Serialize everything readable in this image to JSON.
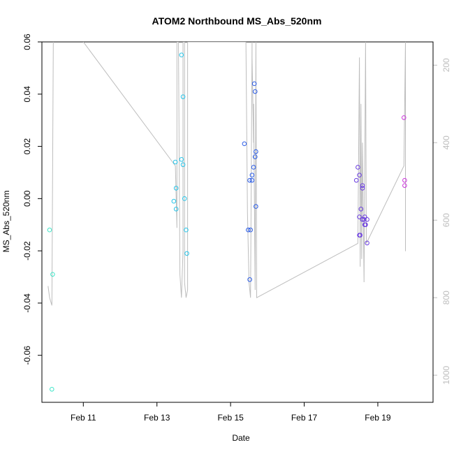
{
  "chart_data": {
    "type": "scatter",
    "title": "ATOM2 Northbound MS_Abs_520nm",
    "xlabel": "Date",
    "ylabel": "MS_Abs_520nm",
    "xlim": [
      "2023-02-09T21:00",
      "2023-02-20T12:00"
    ],
    "ylim": [
      -0.078,
      0.06
    ],
    "y2lim": [
      1070,
      140
    ],
    "grid": false,
    "legend": "none",
    "x_ticks": [
      {
        "x": "2023-02-11T00:00",
        "label": "Feb 11"
      },
      {
        "x": "2023-02-13T00:00",
        "label": "Feb 13"
      },
      {
        "x": "2023-02-15T00:00",
        "label": "Feb 15"
      },
      {
        "x": "2023-02-17T00:00",
        "label": "Feb 17"
      },
      {
        "x": "2023-02-19T00:00",
        "label": "Feb 19"
      }
    ],
    "y_ticks": [
      {
        "y": 0.06,
        "label": "0.06"
      },
      {
        "y": 0.04,
        "label": "0.04"
      },
      {
        "y": 0.02,
        "label": "0.02"
      },
      {
        "y": 0.0,
        "label": "0.00"
      },
      {
        "y": -0.02,
        "label": "-0.02"
      },
      {
        "y": -0.04,
        "label": "-0.04"
      },
      {
        "y": -0.06,
        "label": "-0.06"
      }
    ],
    "y2_ticks": [
      {
        "y": 200,
        "label": "200"
      },
      {
        "y": 400,
        "label": "400"
      },
      {
        "y": 600,
        "label": "600"
      },
      {
        "y": 800,
        "label": "800"
      },
      {
        "y": 1000,
        "label": "1000"
      }
    ],
    "colors": {
      "line": "#bdbdbd",
      "axis": "#000000",
      "right_axis": "#bdbdbd"
    },
    "points": [
      {
        "x": "2023-02-10T02:00",
        "y": -0.012,
        "color": "#3ee6c8"
      },
      {
        "x": "2023-02-10T04:00",
        "y": -0.029,
        "color": "#3ee6c8"
      },
      {
        "x": "2023-02-10T03:30",
        "y": -0.073,
        "color": "#3ee6c8"
      },
      {
        "x": "2023-02-13T11:00",
        "y": -0.001,
        "color": "#26c4e8"
      },
      {
        "x": "2023-02-13T12:00",
        "y": 0.014,
        "color": "#26c4e8"
      },
      {
        "x": "2023-02-13T12:30",
        "y": 0.004,
        "color": "#26c4e8"
      },
      {
        "x": "2023-02-13T12:30",
        "y": -0.004,
        "color": "#26c4e8"
      },
      {
        "x": "2023-02-13T16:00",
        "y": 0.055,
        "color": "#26c4e8"
      },
      {
        "x": "2023-02-13T16:00",
        "y": 0.015,
        "color": "#26c4e8"
      },
      {
        "x": "2023-02-13T17:00",
        "y": 0.039,
        "color": "#26c4e8"
      },
      {
        "x": "2023-02-13T17:00",
        "y": 0.013,
        "color": "#26c4e8"
      },
      {
        "x": "2023-02-13T18:00",
        "y": 0.0,
        "color": "#26c4e8"
      },
      {
        "x": "2023-02-13T19:00",
        "y": -0.012,
        "color": "#26c4e8"
      },
      {
        "x": "2023-02-13T19:30",
        "y": -0.021,
        "color": "#26c4e8"
      },
      {
        "x": "2023-02-15T09:00",
        "y": 0.021,
        "color": "#2a5ce8"
      },
      {
        "x": "2023-02-15T11:30",
        "y": -0.012,
        "color": "#2a5ce8"
      },
      {
        "x": "2023-02-15T12:30",
        "y": 0.007,
        "color": "#2a5ce8"
      },
      {
        "x": "2023-02-15T13:00",
        "y": -0.012,
        "color": "#2a5ce8"
      },
      {
        "x": "2023-02-15T12:30",
        "y": -0.031,
        "color": "#2a5ce8"
      },
      {
        "x": "2023-02-15T14:00",
        "y": 0.009,
        "color": "#2a5ce8"
      },
      {
        "x": "2023-02-15T14:00",
        "y": 0.007,
        "color": "#2a5ce8"
      },
      {
        "x": "2023-02-15T15:00",
        "y": 0.012,
        "color": "#2a5ce8"
      },
      {
        "x": "2023-02-15T15:30",
        "y": 0.044,
        "color": "#2a5ce8"
      },
      {
        "x": "2023-02-15T16:00",
        "y": 0.041,
        "color": "#2a5ce8"
      },
      {
        "x": "2023-02-15T16:00",
        "y": 0.016,
        "color": "#2a5ce8"
      },
      {
        "x": "2023-02-15T16:30",
        "y": 0.018,
        "color": "#2a5ce8"
      },
      {
        "x": "2023-02-15T16:30",
        "y": -0.003,
        "color": "#2a5ce8"
      },
      {
        "x": "2023-02-18T10:00",
        "y": 0.007,
        "color": "#6a3ce0"
      },
      {
        "x": "2023-02-18T11:00",
        "y": 0.012,
        "color": "#6a3ce0"
      },
      {
        "x": "2023-02-18T12:00",
        "y": 0.009,
        "color": "#6a3ce0"
      },
      {
        "x": "2023-02-18T12:00",
        "y": -0.007,
        "color": "#6a3ce0"
      },
      {
        "x": "2023-02-18T12:00",
        "y": -0.014,
        "color": "#6a3ce0"
      },
      {
        "x": "2023-02-18T12:30",
        "y": -0.014,
        "color": "#6a3ce0"
      },
      {
        "x": "2023-02-18T13:00",
        "y": -0.004,
        "color": "#6a3ce0"
      },
      {
        "x": "2023-02-18T14:00",
        "y": 0.005,
        "color": "#6a3ce0"
      },
      {
        "x": "2023-02-18T14:00",
        "y": 0.004,
        "color": "#6a3ce0"
      },
      {
        "x": "2023-02-18T14:00",
        "y": -0.008,
        "color": "#6a3ce0"
      },
      {
        "x": "2023-02-18T15:00",
        "y": -0.008,
        "color": "#6a3ce0"
      },
      {
        "x": "2023-02-18T15:30",
        "y": -0.007,
        "color": "#6a3ce0"
      },
      {
        "x": "2023-02-18T15:30",
        "y": -0.01,
        "color": "#6a3ce0"
      },
      {
        "x": "2023-02-18T16:00",
        "y": -0.01,
        "color": "#6a3ce0"
      },
      {
        "x": "2023-02-18T17:00",
        "y": -0.008,
        "color": "#6a3ce0"
      },
      {
        "x": "2023-02-18T17:00",
        "y": -0.017,
        "color": "#6a3ce0"
      },
      {
        "x": "2023-02-19T17:00",
        "y": 0.031,
        "color": "#cc33dd"
      },
      {
        "x": "2023-02-19T17:30",
        "y": 0.007,
        "color": "#cc33dd"
      },
      {
        "x": "2023-02-19T17:30",
        "y": 0.005,
        "color": "#cc33dd"
      }
    ],
    "depth_line": [
      [
        "2023-02-10T01:00",
        770
      ],
      [
        "2023-02-10T02:00",
        800
      ],
      [
        "2023-02-10T03:30",
        820
      ],
      [
        "2023-02-10T04:30",
        80
      ],
      [
        "2023-02-10T06:00",
        -100
      ],
      [
        "2023-02-11T00:00",
        140
      ],
      [
        "2023-02-13T12:00",
        460
      ],
      [
        "2023-02-13T13:00",
        620
      ],
      [
        "2023-02-13T13:00",
        140
      ],
      [
        "2023-02-13T14:00",
        140
      ],
      [
        "2023-02-13T15:00",
        740
      ],
      [
        "2023-02-13T16:00",
        800
      ],
      [
        "2023-02-13T17:00",
        680
      ],
      [
        "2023-02-13T17:00",
        140
      ],
      [
        "2023-02-13T18:00",
        140
      ],
      [
        "2023-02-13T18:00",
        760
      ],
      [
        "2023-02-13T19:00",
        800
      ],
      [
        "2023-02-13T20:00",
        780
      ],
      [
        "2023-02-13T20:00",
        140
      ],
      [
        "2023-02-15T09:00",
        140
      ],
      [
        "2023-02-15T10:00",
        140
      ],
      [
        "2023-02-15T11:00",
        580
      ],
      [
        "2023-02-15T12:00",
        760
      ],
      [
        "2023-02-15T13:00",
        800
      ],
      [
        "2023-02-15T14:00",
        140
      ],
      [
        "2023-02-15T14:00",
        180
      ],
      [
        "2023-02-15T15:00",
        400
      ],
      [
        "2023-02-15T15:00",
        300
      ],
      [
        "2023-02-15T16:00",
        780
      ],
      [
        "2023-02-15T16:30",
        140
      ],
      [
        "2023-02-15T17:00",
        800
      ],
      [
        "2023-02-18T11:00",
        660
      ],
      [
        "2023-02-18T12:00",
        180
      ],
      [
        "2023-02-18T12:30",
        720
      ],
      [
        "2023-02-18T13:00",
        300
      ],
      [
        "2023-02-18T13:30",
        700
      ],
      [
        "2023-02-18T14:00",
        400
      ],
      [
        "2023-02-18T15:00",
        760
      ],
      [
        "2023-02-18T16:00",
        140
      ],
      [
        "2023-02-18T16:30",
        660
      ],
      [
        "2023-02-19T17:00",
        460
      ],
      [
        "2023-02-19T18:00",
        140
      ],
      [
        "2023-02-19T18:00",
        680
      ]
    ]
  }
}
